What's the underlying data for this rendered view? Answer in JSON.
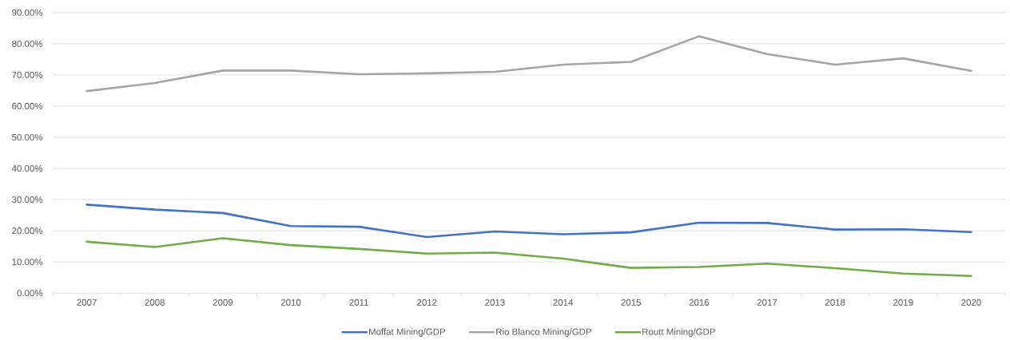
{
  "chart_data": {
    "type": "line",
    "categories": [
      "2007",
      "2008",
      "2009",
      "2010",
      "2011",
      "2012",
      "2013",
      "2014",
      "2015",
      "2016",
      "2017",
      "2018",
      "2019",
      "2020"
    ],
    "series": [
      {
        "name": "Moffat Mining/GDP",
        "color": "#4472c4",
        "values": [
          28.4,
          26.8,
          25.7,
          21.5,
          21.3,
          18.0,
          19.8,
          18.9,
          19.5,
          22.6,
          22.5,
          20.4,
          20.5,
          19.6
        ]
      },
      {
        "name": "Rio Blanco Mining/GDP",
        "color": "#a5a5a5",
        "values": [
          64.8,
          67.4,
          71.4,
          71.4,
          70.2,
          70.5,
          71.0,
          73.3,
          74.2,
          82.4,
          76.7,
          73.3,
          75.3,
          71.3
        ]
      },
      {
        "name": "Routt Mining/GDP",
        "color": "#70ad47",
        "values": [
          16.5,
          14.8,
          17.6,
          15.4,
          14.2,
          12.7,
          13.0,
          11.1,
          8.1,
          8.4,
          9.5,
          8.0,
          6.3,
          5.5
        ]
      }
    ],
    "ylim": [
      0,
      90
    ],
    "yticks": [
      {
        "value": 0,
        "label": "0.00%"
      },
      {
        "value": 10,
        "label": "10.00%"
      },
      {
        "value": 20,
        "label": "20.00%"
      },
      {
        "value": 30,
        "label": "30.00%"
      },
      {
        "value": 40,
        "label": "40.00%"
      },
      {
        "value": 50,
        "label": "50.00%"
      },
      {
        "value": 60,
        "label": "60.00%"
      },
      {
        "value": 70,
        "label": "70.00%"
      },
      {
        "value": 80,
        "label": "80.00%"
      },
      {
        "value": 90,
        "label": "90.00%"
      }
    ],
    "grid": "y",
    "legend": "bottom",
    "marker": "none",
    "line_style": "solid"
  }
}
